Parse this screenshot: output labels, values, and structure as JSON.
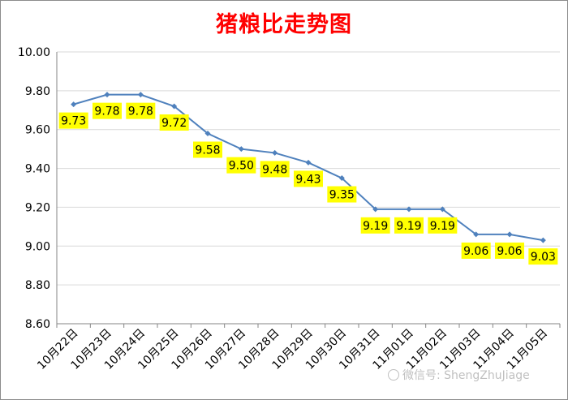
{
  "chart_data": {
    "type": "line",
    "title": "猪粮比走势图",
    "categories": [
      "10月22日",
      "10月23日",
      "10月24日",
      "10月25日",
      "10月26日",
      "10月27日",
      "10月28日",
      "10月29日",
      "10月30日",
      "10月31日",
      "11月01日",
      "11月02日",
      "11月03日",
      "11月04日",
      "11月05日"
    ],
    "series": [
      {
        "values": [
          9.73,
          9.78,
          9.78,
          9.72,
          9.58,
          9.5,
          9.48,
          9.43,
          9.35,
          9.19,
          9.19,
          9.19,
          9.06,
          9.06,
          9.03
        ]
      }
    ],
    "data_labels": [
      "9.73",
      "9.78",
      "9.78",
      "9.72",
      "9.58",
      "9.50",
      "9.48",
      "9.43",
      "9.35",
      "9.19",
      "9.19",
      "9.19",
      "9.06",
      "9.06",
      "9.03"
    ],
    "ylim": [
      8.6,
      10.0
    ],
    "yticks": [
      "10.00",
      "9.80",
      "9.60",
      "9.40",
      "9.20",
      "9.00",
      "8.80",
      "8.60"
    ],
    "grid": true,
    "legend": "none",
    "colors": {
      "line": "#4f81bd",
      "label_bg": "#ffff00",
      "title": "#ff0000",
      "grid": "#d9d9d9"
    }
  },
  "watermark": {
    "text": "微信号: ShengZhuJiage",
    "icon": "wechat-icon"
  }
}
